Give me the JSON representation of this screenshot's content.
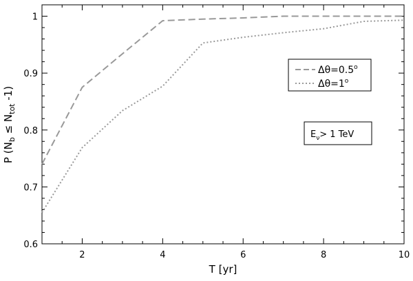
{
  "chart_data": {
    "type": "line",
    "xlabel": "T [yr]",
    "ylabel": {
      "p": "P (N",
      "sub_b": "b",
      "le": " ≤ N",
      "sub_tot": "tot",
      "end": " -1)"
    },
    "xlim": [
      1,
      10
    ],
    "ylim": [
      0.6,
      1.02
    ],
    "x_ticks": [
      2,
      4,
      6,
      8,
      10
    ],
    "x_tick_labels": [
      "2",
      "4",
      "6",
      "8",
      "10"
    ],
    "y_ticks": [
      0.6,
      0.7,
      0.8,
      0.9,
      1.0
    ],
    "y_tick_labels": [
      "0.6",
      "0.7",
      "0.8",
      "0.9",
      "1"
    ],
    "grid": false,
    "series": [
      {
        "name": "Δθ=0.5°",
        "legend_text": "Δθ=0.5",
        "legend_sup": "o",
        "style": "dashed",
        "color": "#999999",
        "x": [
          1,
          2,
          3,
          4,
          5,
          6,
          7,
          8,
          9,
          10
        ],
        "y": [
          0.74,
          0.875,
          0.934,
          0.992,
          0.995,
          0.997,
          1.0,
          1.0,
          1.0,
          1.0
        ]
      },
      {
        "name": "Δθ=1°",
        "legend_text": "Δθ=1",
        "legend_sup": "o",
        "style": "dotted",
        "color": "#999999",
        "x": [
          1,
          2,
          3,
          4,
          5,
          6,
          7,
          8,
          9,
          10
        ],
        "y": [
          0.655,
          0.769,
          0.834,
          0.877,
          0.953,
          0.963,
          0.971,
          0.978,
          0.991,
          0.993
        ]
      }
    ],
    "legend_position": "upper right",
    "annotation": {
      "main": "E",
      "sub": "ν",
      "rest": "> 1 TeV"
    }
  }
}
